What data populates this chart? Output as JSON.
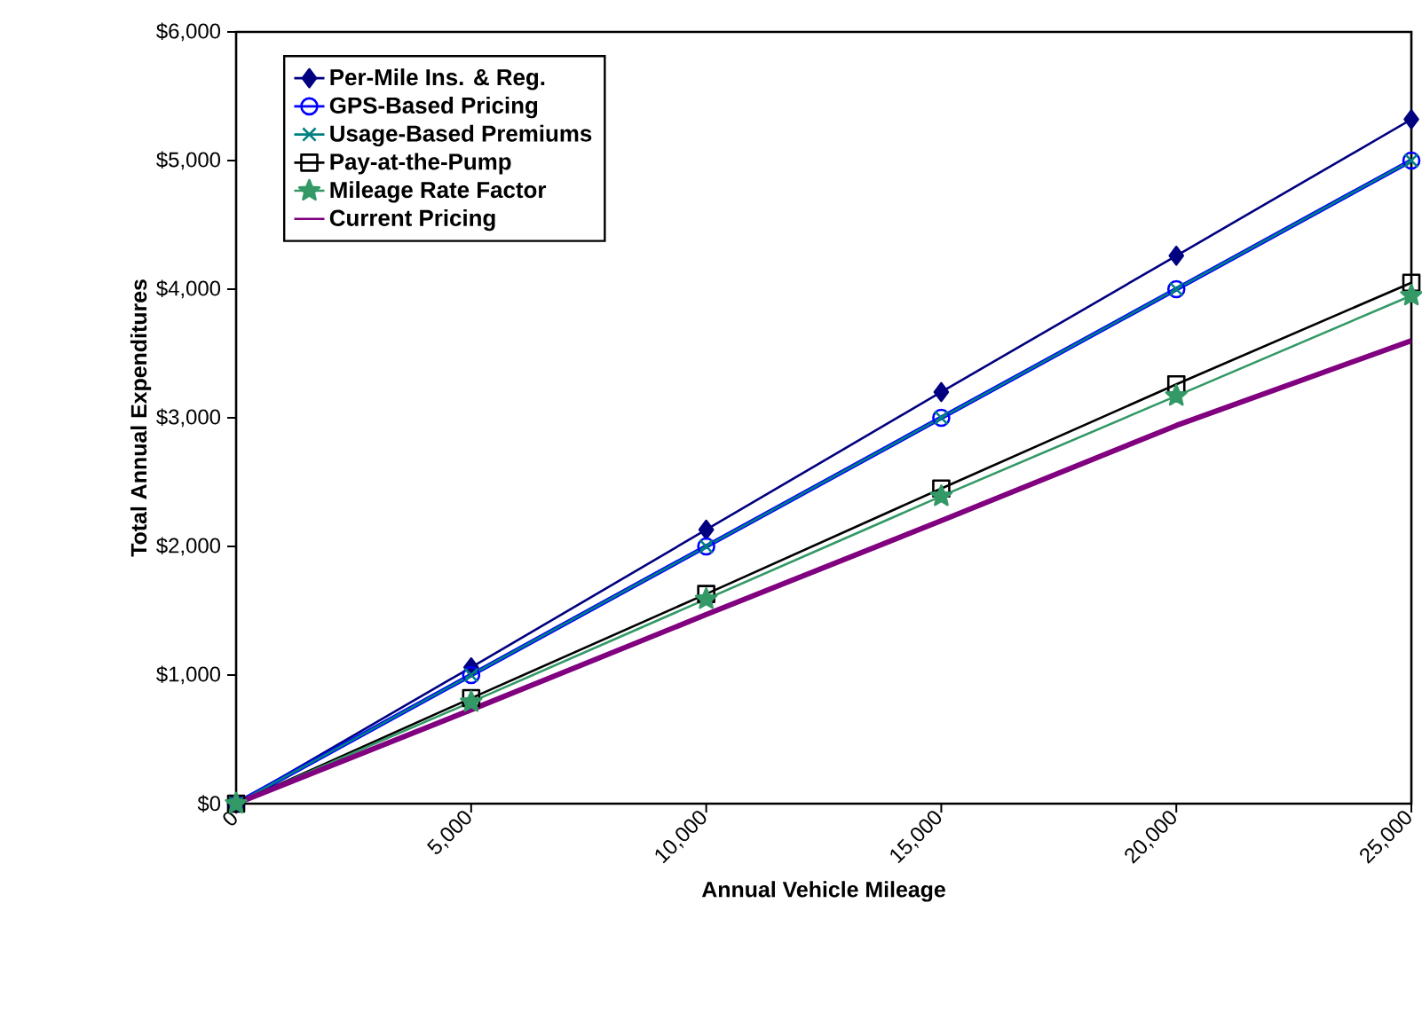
{
  "chart_data": {
    "type": "line",
    "xlabel": "Annual Vehicle Mileage",
    "ylabel": "Total Annual Expenditures",
    "x": [
      0,
      5000,
      10000,
      15000,
      20000,
      25000
    ],
    "xlim": [
      0,
      25000
    ],
    "xticks": [
      {
        "value": 0,
        "label": "0"
      },
      {
        "value": 5000,
        "label": "5,000"
      },
      {
        "value": 10000,
        "label": "10,000"
      },
      {
        "value": 15000,
        "label": "15,000"
      },
      {
        "value": 20000,
        "label": "20,000"
      },
      {
        "value": 25000,
        "label": "25,000"
      }
    ],
    "ylim": [
      0,
      6000
    ],
    "yticks": [
      {
        "value": 0,
        "label": "$0"
      },
      {
        "value": 1000,
        "label": "$1,000"
      },
      {
        "value": 2000,
        "label": "$2,000"
      },
      {
        "value": 3000,
        "label": "$3,000"
      },
      {
        "value": 4000,
        "label": "$4,000"
      },
      {
        "value": 5000,
        "label": "$5,000"
      },
      {
        "value": 6000,
        "label": "$6,000"
      }
    ],
    "legend": "top left",
    "grid": false,
    "series": [
      {
        "name": "Per-Mile Ins. & Reg.",
        "color": "#000080",
        "marker": "diamond",
        "values": [
          0,
          1060,
          2130,
          3200,
          4260,
          5320
        ]
      },
      {
        "name": "GPS-Based Pricing",
        "color": "#0000ff",
        "marker": "circle",
        "values": [
          0,
          1000,
          2000,
          3000,
          4000,
          5000
        ]
      },
      {
        "name": "Usage-Based Premiums",
        "color": "#008080",
        "marker": "cross",
        "values": [
          0,
          1000,
          2000,
          3000,
          4000,
          5000
        ]
      },
      {
        "name": "Pay-at-the-Pump",
        "color": "#000000",
        "marker": "square",
        "values": [
          0,
          820,
          1630,
          2450,
          3260,
          4050
        ]
      },
      {
        "name": "Mileage Rate Factor",
        "color": "#339966",
        "marker": "star",
        "values": [
          0,
          790,
          1590,
          2390,
          3170,
          3950
        ]
      },
      {
        "name": "Current Pricing",
        "color": "#800080",
        "marker": "none",
        "values": [
          0,
          730,
          1470,
          2200,
          2940,
          3600
        ]
      }
    ]
  }
}
